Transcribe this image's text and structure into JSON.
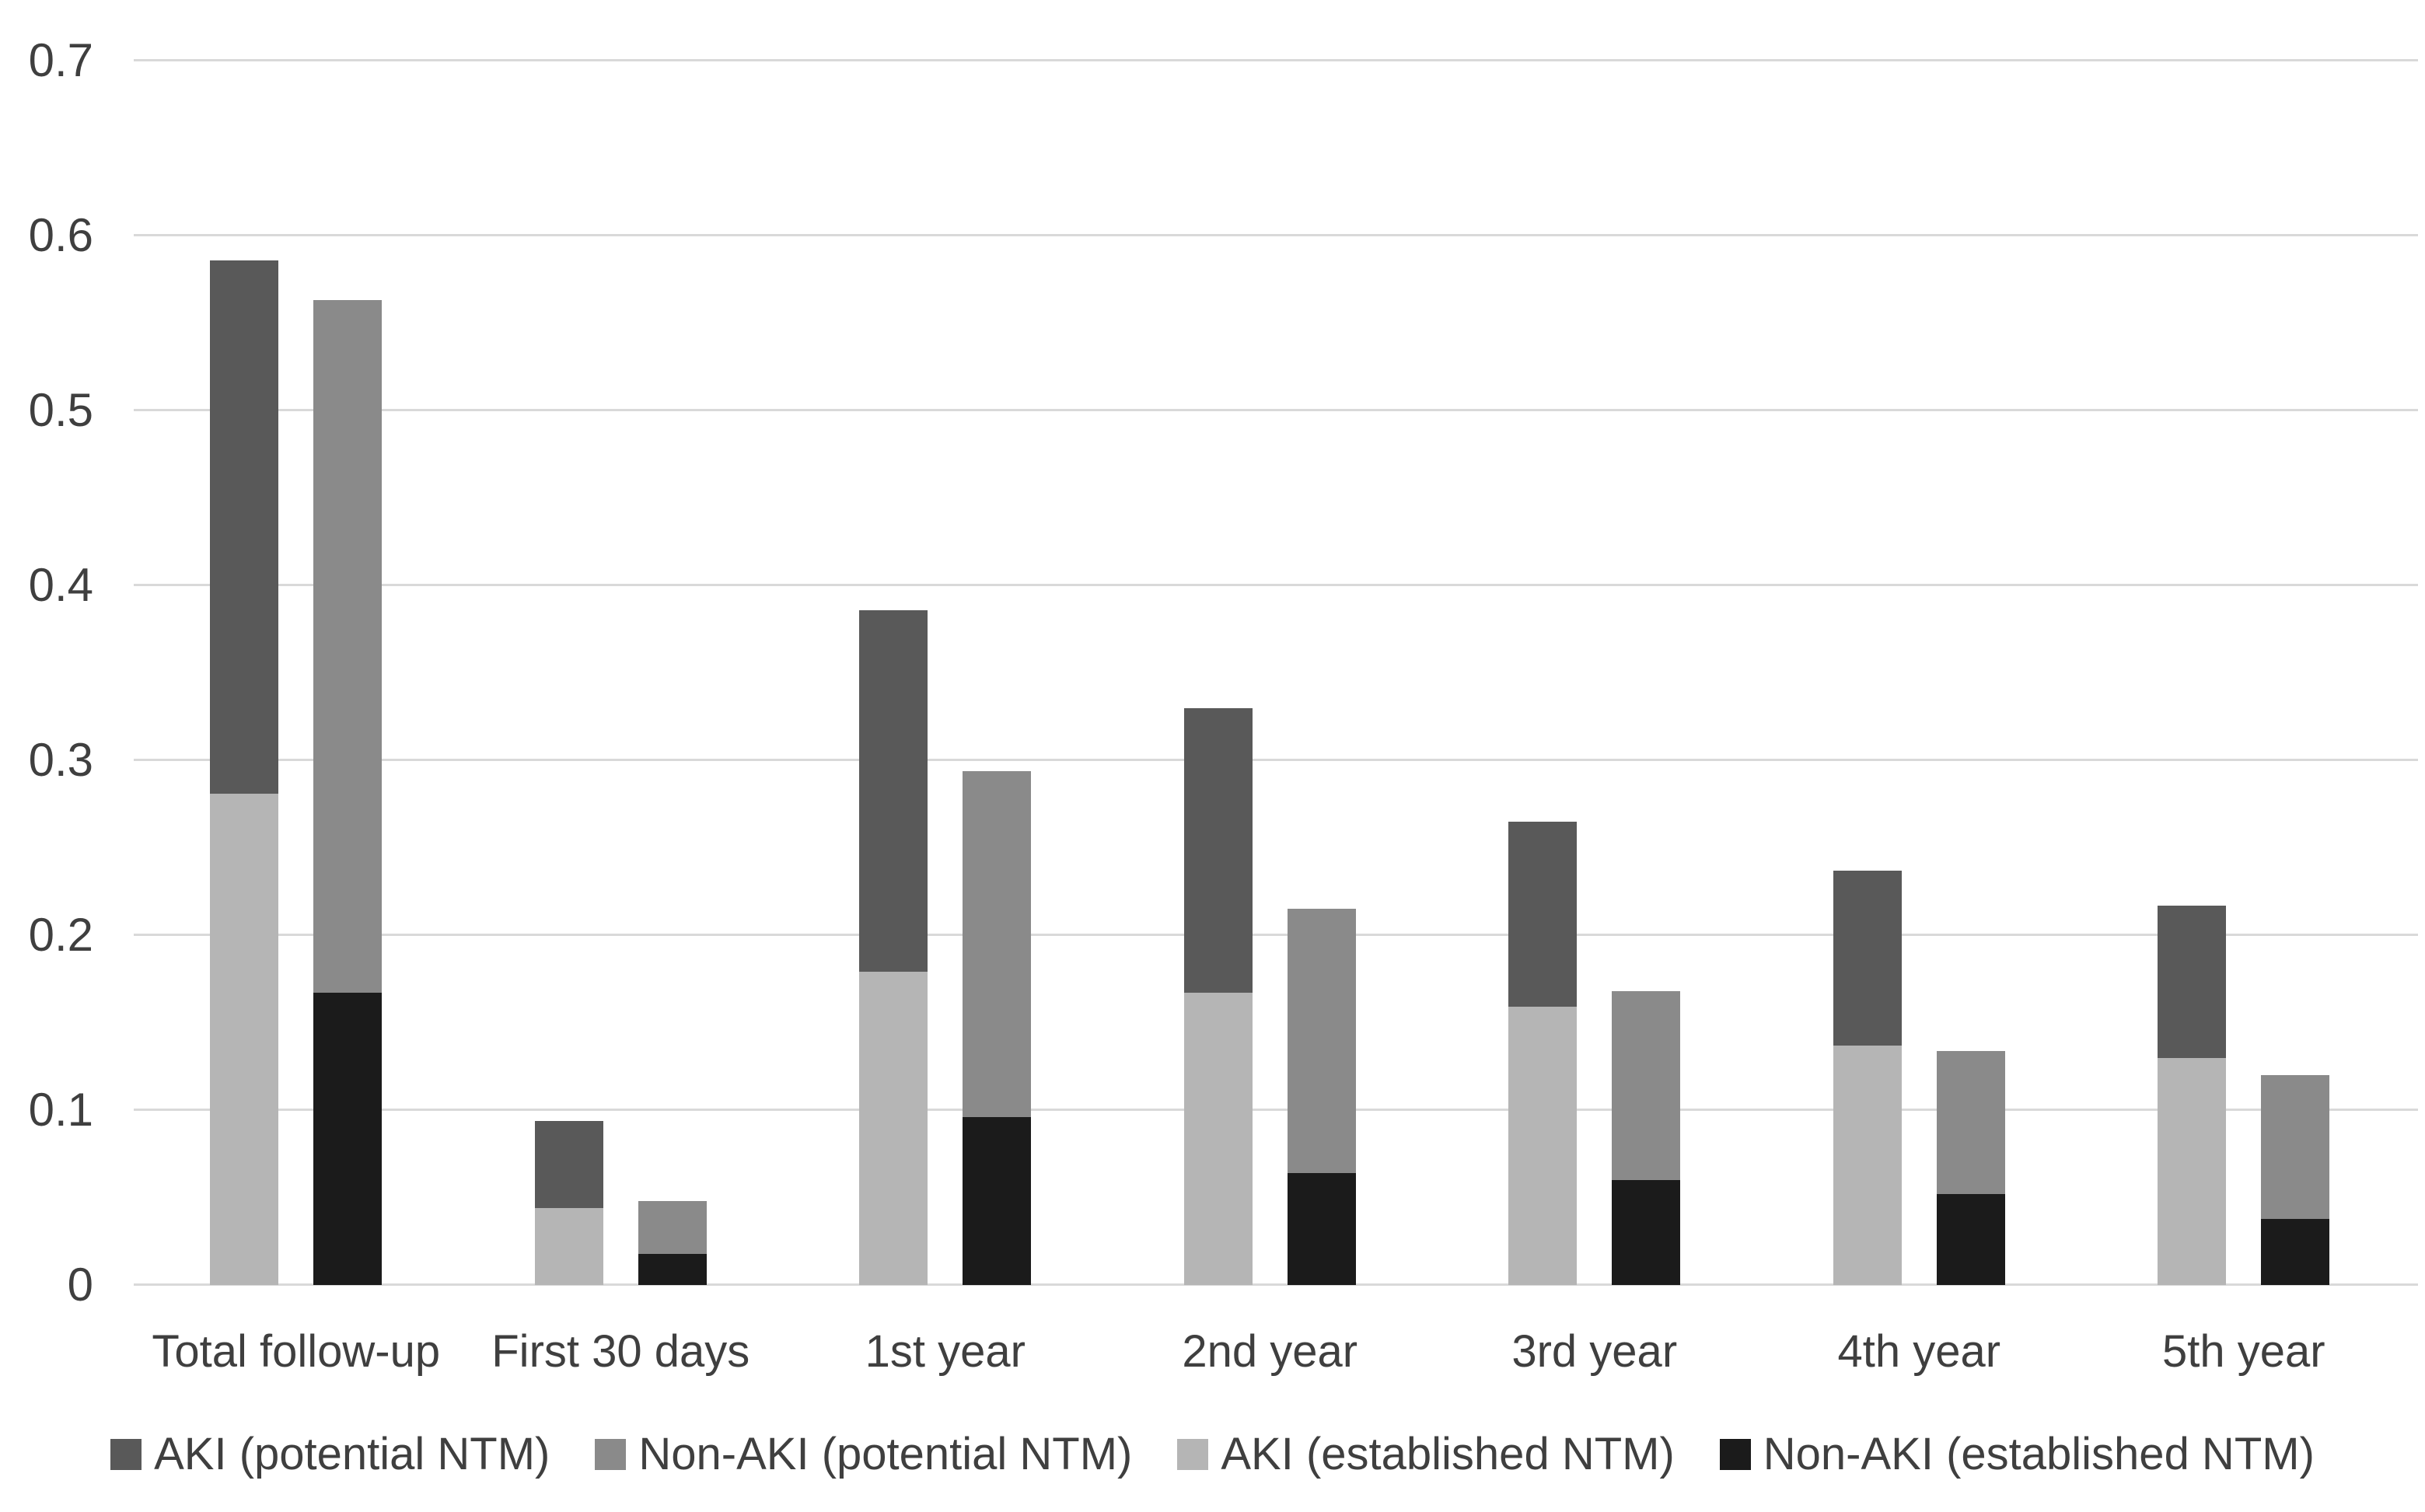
{
  "styles": {
    "background": "#FFFFFF",
    "gridline_color": "#D9D9D9",
    "axis_text_color": "#3F3F3F"
  },
  "chart_data": {
    "type": "bar",
    "subtype": "grouped-stacked",
    "title": "",
    "xlabel": "",
    "ylabel": "",
    "grid": true,
    "legend_position": "bottom",
    "categories": [
      "Total follow-up",
      "First 30 days",
      "1st year",
      "2nd year",
      "3rd year",
      "4th year",
      "5th year"
    ],
    "y_axis": {
      "min": 0,
      "max": 0.7,
      "tick_values": [
        0,
        0.1,
        0.2,
        0.3,
        0.4,
        0.5,
        0.6,
        0.7
      ],
      "tick_labels": [
        "0",
        "0.1",
        "0.2",
        "0.3",
        "0.4",
        "0.5",
        "0.6",
        "0.7"
      ]
    },
    "series": [
      {
        "name": "AKI (potential NTM)",
        "color": "#595959",
        "bar_index": 0,
        "stack_position": "top",
        "values": [
          0.305,
          0.05,
          0.207,
          0.163,
          0.106,
          0.1,
          0.087
        ]
      },
      {
        "name": "Non-AKI (potential NTM)",
        "color": "#8A8A8A",
        "bar_index": 1,
        "stack_position": "top",
        "values": [
          0.396,
          0.03,
          0.198,
          0.151,
          0.108,
          0.082,
          0.082
        ]
      },
      {
        "name": "AKI (established NTM)",
        "color": "#B5B5B5",
        "bar_index": 0,
        "stack_position": "bottom",
        "values": [
          0.281,
          0.044,
          0.179,
          0.167,
          0.159,
          0.137,
          0.13
        ]
      },
      {
        "name": "Non-AKI (established NTM)",
        "color": "#1B1B1B",
        "bar_index": 1,
        "stack_position": "bottom",
        "values": [
          0.167,
          0.018,
          0.096,
          0.064,
          0.06,
          0.052,
          0.038
        ]
      }
    ],
    "stacked_bar_totals": {
      "AKI": [
        0.586,
        0.094,
        0.386,
        0.33,
        0.265,
        0.237,
        0.217
      ],
      "Non-AKI": [
        0.563,
        0.048,
        0.294,
        0.215,
        0.168,
        0.134,
        0.12
      ]
    }
  }
}
